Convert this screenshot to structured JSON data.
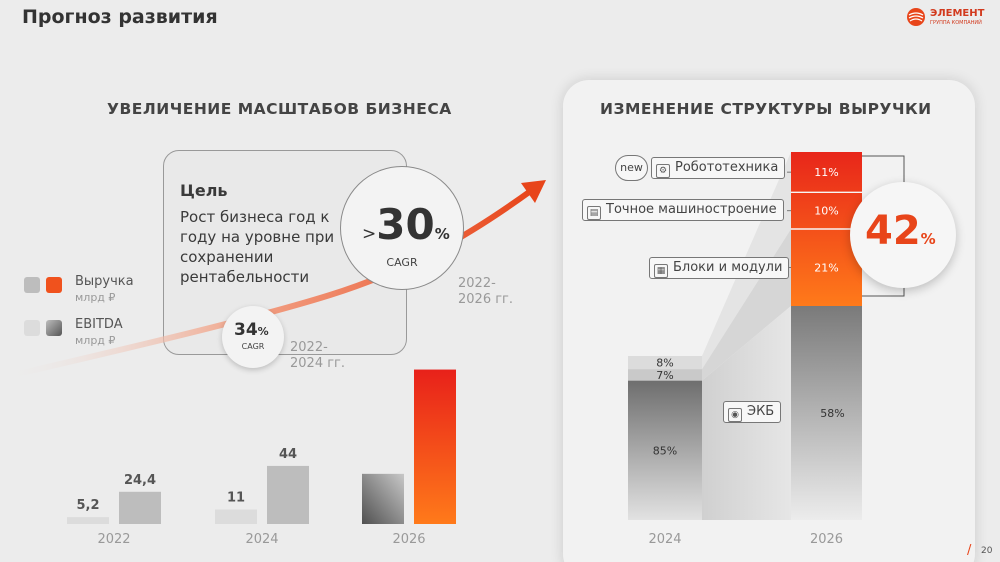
{
  "page": {
    "title": "Прогноз развития",
    "page_number": "20",
    "logo_name": "ЭЛЕМЕНТ",
    "logo_sub": "ГРУППА КОМПАНИЙ"
  },
  "left": {
    "section_title": "УВЕЛИЧЕНИЕ МАСШТАБОВ БИЗНЕСА",
    "goal_title": "Цель",
    "goal_text": "Рост бизнеса год к году на уровне при сохранении рентабельности",
    "cagr_big": {
      "prefix": ">",
      "value": "30",
      "unit": "%",
      "caption": "CAGR",
      "period": "2022-\n2026 гг."
    },
    "cagr_small": {
      "value": "34",
      "unit": "%",
      "caption": "CAGR",
      "period": "2022-\n2024 гг."
    },
    "legend": [
      {
        "name": "Выручка",
        "unit": "млрд ₽",
        "colors": [
          "#bdbdbd",
          "#f0521d"
        ]
      },
      {
        "name": "EBITDA",
        "unit": "млрд ₽",
        "colors": [
          "#dcdcdc",
          "#6a6a6a"
        ]
      }
    ]
  },
  "right": {
    "section_title": "ИЗМЕНЕНИЕ СТРУКТУРЫ ВЫРУЧКИ",
    "new_badge": "new",
    "callouts": {
      "robotics": "Робототехника",
      "machinery": "Точное машиностроение",
      "blocks": "Блоки и модули",
      "ekb": "ЭКБ"
    },
    "new_share": {
      "value": "42",
      "unit": "%"
    }
  },
  "chart_data": [
    {
      "type": "bar",
      "categories": [
        "2022",
        "2024",
        "2026"
      ],
      "series": [
        {
          "name": "EBITDA",
          "values": [
            5.2,
            11,
            null
          ],
          "labels": [
            "5,2",
            "11",
            ""
          ]
        },
        {
          "name": "Выручка",
          "values": [
            24.4,
            44,
            null
          ],
          "labels": [
            "24,4",
            "44",
            ""
          ]
        }
      ],
      "ylim": [
        0,
        120
      ]
    },
    {
      "type": "bar",
      "stacked": true,
      "percent": true,
      "categories": [
        "2024",
        "2026"
      ],
      "series": [
        {
          "name": "ЭКБ",
          "values": [
            85,
            58
          ],
          "labels": [
            "85%",
            "58%"
          ]
        },
        {
          "name": "Блоки и модули",
          "values": [
            0,
            21
          ],
          "labels": [
            "",
            "21%"
          ]
        },
        {
          "name": "Точное машиностроение",
          "values": [
            7,
            10
          ],
          "labels": [
            "7%",
            "10%"
          ]
        },
        {
          "name": "Робототехника",
          "values": [
            8,
            11
          ],
          "labels": [
            "8%",
            "11%"
          ]
        }
      ]
    }
  ]
}
